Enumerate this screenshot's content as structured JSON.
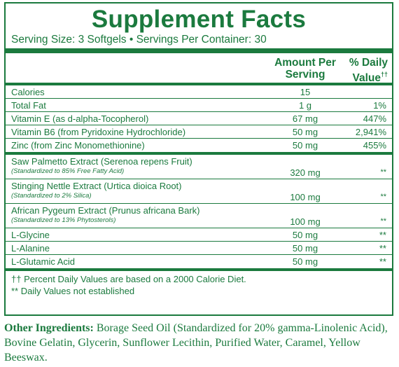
{
  "title": "Supplement Facts",
  "serving_line": "Serving Size: 3 Softgels  •  Servings Per Container: 30",
  "header": {
    "amount_line1": "Amount Per",
    "amount_line2": "Serving",
    "dv_line1": "% Daily",
    "dv_line2": "Value",
    "dv_mark": "††"
  },
  "rows_a": [
    {
      "name": "Calories",
      "amount": "15",
      "daily": ""
    },
    {
      "name": "Total Fat",
      "amount": "1 g",
      "daily": "1%"
    },
    {
      "name": "Vitamin E (as d-alpha-Tocopherol)",
      "amount": "67 mg",
      "daily": "447%"
    },
    {
      "name": "Vitamin B6 (from Pyridoxine Hydrochloride)",
      "amount": "50 mg",
      "daily": "2,941%"
    },
    {
      "name": "Zinc (from Zinc Monomethionine)",
      "amount": "50 mg",
      "daily": "455%"
    }
  ],
  "rows_b": [
    {
      "name": "Saw Palmetto Extract (Serenoa repens Fruit)",
      "sub": "(Standardized to 85% Free Fatty Acid)",
      "amount": "320 mg",
      "daily": "**"
    },
    {
      "name": "Stinging Nettle Extract (Urtica dioica Root)",
      "sub": "(Standardized to 2% Silica)",
      "amount": "100 mg",
      "daily": "**"
    },
    {
      "name": "African Pygeum Extract (Prunus africana Bark)",
      "sub": "(Standardized to 13% Phytosterols)",
      "amount": "100 mg",
      "daily": "**"
    },
    {
      "name": "L-Glycine",
      "amount": "50 mg",
      "daily": "**"
    },
    {
      "name": "L-Alanine",
      "amount": "50 mg",
      "daily": "**"
    },
    {
      "name": "L-Glutamic Acid",
      "amount": "50 mg",
      "daily": "**"
    }
  ],
  "footnotes": {
    "line1": "†† Percent Daily Values are based on a 2000 Calorie Diet.",
    "line2": "** Daily Values not established"
  },
  "other_ingredients": {
    "label": "Other Ingredients:",
    "text": " Borage Seed Oil (Standardized for 20% gamma-Linolenic Acid), Bovine Gelatin, Glycerin, Sunflower Lecithin, Purified Water, Caramel, Yellow Beeswax."
  },
  "colors": {
    "ink": "#1b7a3e"
  }
}
